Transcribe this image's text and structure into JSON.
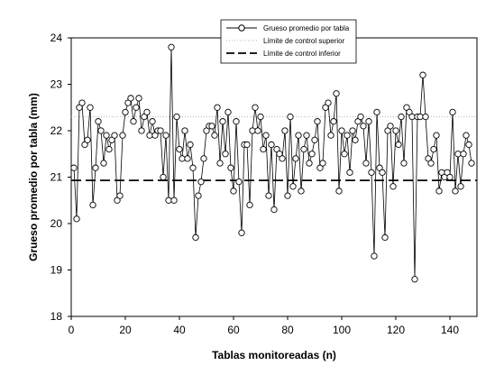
{
  "chart_data": {
    "type": "line",
    "title": "",
    "xlabel": "Tablas monitoreadas (n)",
    "ylabel": "Grueso promedio por tabla (mm)",
    "xlim": [
      0,
      150
    ],
    "ylim": [
      18,
      24
    ],
    "x_ticks": [
      0,
      20,
      40,
      60,
      80,
      100,
      120,
      140
    ],
    "y_ticks": [
      18,
      19,
      20,
      21,
      22,
      23,
      24
    ],
    "grid": false,
    "legend_position": "top-center",
    "legend": [
      "Grueso promedio por tabla",
      "Límite de control superior",
      "Límite de control inferior"
    ],
    "series": [
      {
        "name": "Grueso promedio por tabla",
        "marker": "open-circle",
        "x_start": 1,
        "values": [
          21.2,
          20.1,
          22.5,
          22.6,
          21.7,
          21.8,
          22.5,
          20.4,
          21.2,
          22.2,
          22.0,
          21.3,
          21.9,
          21.6,
          21.8,
          21.9,
          20.5,
          20.6,
          21.9,
          22.4,
          22.6,
          22.7,
          22.2,
          22.5,
          22.7,
          22.0,
          22.3,
          22.4,
          21.9,
          22.2,
          21.9,
          22.0,
          22.0,
          21.0,
          21.9,
          20.5,
          23.8,
          20.5,
          22.3,
          21.6,
          21.4,
          22.0,
          21.4,
          21.7,
          21.2,
          19.7,
          20.6,
          20.9,
          21.4,
          22.0,
          22.1,
          22.1,
          21.9,
          22.5,
          21.3,
          22.2,
          21.5,
          22.4,
          21.2,
          20.7,
          22.2,
          20.9,
          19.8,
          21.7,
          21.7,
          20.4,
          22.0,
          22.5,
          22.0,
          22.3,
          21.6,
          21.9,
          20.6,
          21.7,
          20.3,
          21.6,
          21.5,
          21.4,
          22.0,
          20.6,
          22.3,
          20.8,
          21.4,
          21.9,
          20.7,
          21.6,
          21.9,
          21.3,
          21.5,
          21.8,
          22.2,
          21.2,
          21.3,
          22.5,
          22.6,
          21.9,
          22.2,
          22.8,
          20.7,
          22.0,
          21.5,
          21.9,
          21.1,
          22.0,
          21.8,
          22.2,
          22.3,
          22.1,
          21.3,
          22.2,
          21.1,
          19.3,
          22.4,
          21.2,
          21.1,
          19.7,
          22.0,
          22.1,
          20.8,
          22.0,
          21.7,
          22.3,
          21.3,
          22.5,
          22.4,
          22.3,
          18.8,
          22.3,
          22.3,
          23.2,
          22.3,
          21.4,
          21.3,
          21.6,
          21.9,
          20.7,
          21.1,
          21.0,
          21.1,
          21.0,
          22.4,
          20.7,
          21.5,
          20.8,
          21.5,
          21.9,
          21.7,
          21.3
        ]
      }
    ],
    "control_limits": {
      "upper": 22.3,
      "lower": 20.93
    }
  }
}
